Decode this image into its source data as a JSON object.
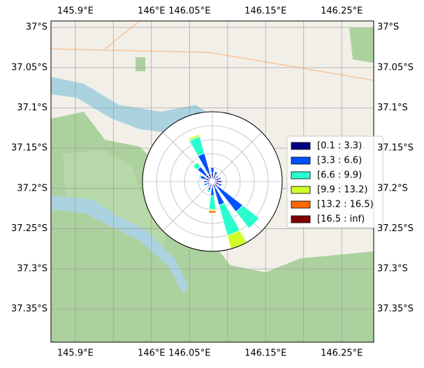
{
  "map": {
    "xlim": [
      145.868,
      146.292
    ],
    "ylim": [
      -37.391,
      -36.992
    ],
    "xticks": [
      {
        "value": 145.9,
        "label": "145.9°E"
      },
      {
        "value": 146.0,
        "label": "146°E"
      },
      {
        "value": 146.05,
        "label": "146.05°E"
      },
      {
        "value": 146.15,
        "label": "146.15°E"
      },
      {
        "value": 146.25,
        "label": "146.25°E"
      }
    ],
    "grid_lon": [
      145.9,
      145.95,
      146.0,
      146.05,
      146.1,
      146.15,
      146.2,
      146.25
    ],
    "yticks": [
      {
        "value": -37.0,
        "label": "37°S"
      },
      {
        "value": -37.05,
        "label": "37.05°S"
      },
      {
        "value": -37.1,
        "label": "37.1°S"
      },
      {
        "value": -37.15,
        "label": "37.15°S"
      },
      {
        "value": -37.2,
        "label": "37.2°S"
      },
      {
        "value": -37.25,
        "label": "37.25°S"
      },
      {
        "value": -37.3,
        "label": "37.3°S"
      },
      {
        "value": -37.35,
        "label": "37.35°S"
      }
    ]
  },
  "windrose": {
    "type": "windrose",
    "rlim": [
      0,
      100
    ],
    "rings": [
      20,
      40,
      60,
      80,
      100
    ],
    "directions": [
      0,
      22.5,
      45,
      67.5,
      90,
      112.5,
      135,
      157.5,
      180,
      202.5,
      225,
      247.5,
      270,
      292.5,
      315,
      337.5
    ],
    "series": [
      {
        "name": "[0.1 : 3.3)",
        "color": "#00007f",
        "values": [
          12,
          10,
          8,
          10,
          12,
          10,
          10,
          10,
          8,
          8,
          6,
          8,
          8,
          10,
          12,
          12
        ]
      },
      {
        "name": "[3.3 : 6.6)",
        "color": "#0050ff",
        "values": [
          8,
          5,
          3,
          3,
          2,
          4,
          45,
          25,
          12,
          5,
          3,
          4,
          4,
          8,
          15,
          30
        ]
      },
      {
        "name": "[6.6 : 9.9)",
        "color": "#29ffce",
        "values": [
          0,
          0,
          0,
          0,
          0,
          0,
          30,
          45,
          20,
          3,
          0,
          2,
          0,
          2,
          8,
          25
        ]
      },
      {
        "name": "[9.9 : 13.2)",
        "color": "#ceff29",
        "values": [
          0,
          0,
          0,
          0,
          0,
          0,
          0,
          20,
          2,
          0,
          0,
          0,
          0,
          0,
          0,
          3
        ]
      },
      {
        "name": "[13.2 : 16.5)",
        "color": "#ff6800",
        "values": [
          0,
          0,
          0,
          0,
          0,
          0,
          0,
          0,
          3,
          0,
          0,
          0,
          0,
          0,
          0,
          0
        ]
      },
      {
        "name": "[16.5 : inf)",
        "color": "#7f0000",
        "values": [
          0,
          0,
          0,
          0,
          0,
          0,
          0,
          0,
          0,
          0,
          0,
          0,
          0,
          0,
          0,
          0
        ]
      }
    ]
  }
}
